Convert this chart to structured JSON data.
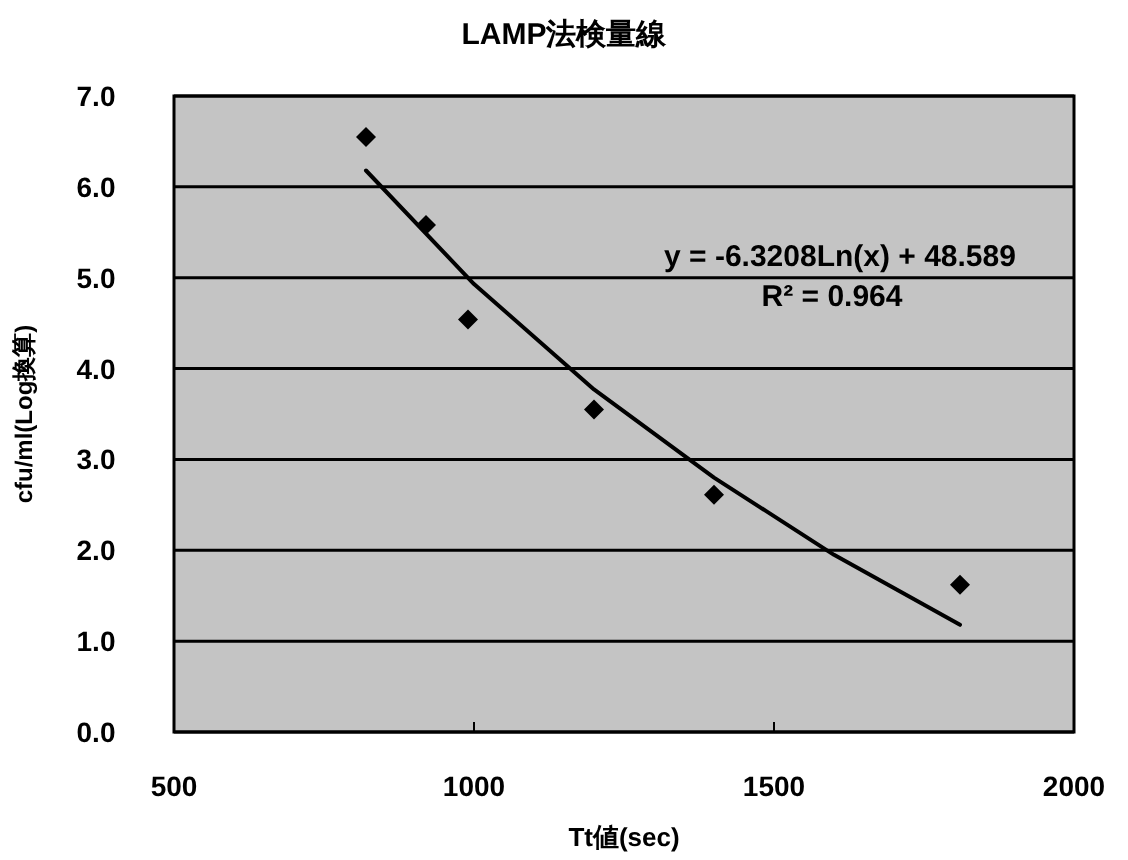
{
  "chart_data": {
    "type": "scatter",
    "title": "LAMP法検量線",
    "xlabel": "Tt値(sec)",
    "ylabel": "cfu/ml(Log換算)",
    "series": [
      {
        "color": "#000000",
        "marker": "diamond",
        "x": [
          820,
          920,
          990,
          1200,
          1400,
          1810
        ],
        "values": [
          6.55,
          5.58,
          4.54,
          3.55,
          2.61,
          1.62
        ]
      },
      {
        "type": "line",
        "color": "#000000",
        "marker": "none",
        "line_style": "solid",
        "x": [
          820,
          1000,
          1200,
          1400,
          1600,
          1810
        ],
        "values": [
          6.18,
          4.93,
          3.77,
          2.8,
          1.95,
          1.18
        ]
      }
    ],
    "xlim": [
      500,
      2000
    ],
    "ylim": [
      0,
      7
    ],
    "xticks": [
      500,
      1000,
      1500,
      2000
    ],
    "yticks": [
      {
        "value": 0,
        "label": "0.0"
      },
      {
        "value": 1,
        "label": "1.0"
      },
      {
        "value": 2,
        "label": "2.0"
      },
      {
        "value": 3,
        "label": "3.0"
      },
      {
        "value": 4,
        "label": "4.0"
      },
      {
        "value": 5,
        "label": "5.0"
      },
      {
        "value": 6,
        "label": "6.0"
      },
      {
        "value": 7,
        "label": "7.0"
      }
    ],
    "grid": "y",
    "annotations": [
      "y = -6.3208Ln(x) + 48.589",
      "R² = 0.964"
    ]
  }
}
